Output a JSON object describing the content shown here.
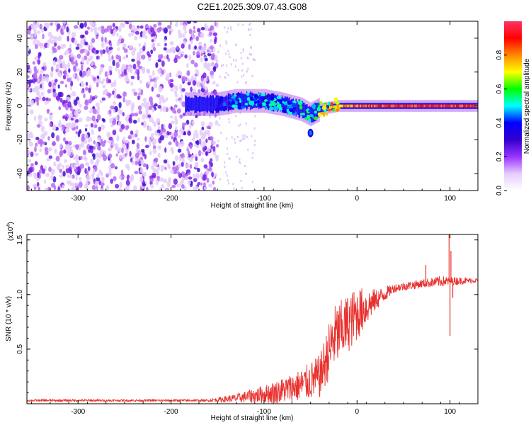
{
  "title": "C2E1.2025.309.07.43.G08",
  "chart_data": [
    {
      "type": "heatmap",
      "name": "spectrogram",
      "xlabel": "Height of straight line (km)",
      "ylabel": "Frequency (Hz)",
      "xlim": [
        -355,
        130
      ],
      "ylim": [
        -50,
        50
      ],
      "xticks": [
        -300,
        -200,
        -100,
        0,
        100
      ],
      "yticks": [
        -40,
        -20,
        0,
        20,
        40
      ],
      "colorbar": {
        "label": "Normalized spectral amplitude",
        "range": [
          0,
          1
        ],
        "ticks": [
          "0.0",
          "0.2",
          "0.4",
          "0.6",
          "0.8"
        ],
        "tick_values": [
          0,
          0.2,
          0.4,
          0.6,
          0.8
        ],
        "colormap": [
          "#ffffff",
          "#e6ccff",
          "#9933ff",
          "#3300cc",
          "#0000ff",
          "#00ffff",
          "#00ff00",
          "#ffff00",
          "#ff8800",
          "#ff0000",
          "#ff3366"
        ]
      },
      "noise_region_x": [
        -355,
        -150
      ],
      "signal_ridge": [
        {
          "x": -185,
          "f": 1,
          "a": 0.45
        },
        {
          "x": -150,
          "f": 1,
          "a": 0.35
        },
        {
          "x": -130,
          "f": 3,
          "a": 0.5
        },
        {
          "x": -100,
          "f": 3,
          "a": 0.5
        },
        {
          "x": -80,
          "f": 1,
          "a": 0.5
        },
        {
          "x": -60,
          "f": -2,
          "a": 0.55
        },
        {
          "x": -50,
          "f": -5,
          "a": 0.6
        },
        {
          "x": -40,
          "f": -2,
          "a": 0.7
        },
        {
          "x": -20,
          "f": 0,
          "a": 0.85
        },
        {
          "x": 0,
          "f": 0,
          "a": 0.9
        },
        {
          "x": 50,
          "f": 0,
          "a": 0.95
        },
        {
          "x": 100,
          "f": 0,
          "a": 0.95
        },
        {
          "x": 130,
          "f": 0,
          "a": 0.95
        }
      ],
      "blob": {
        "x": -50,
        "f": -16,
        "a": 0.45
      }
    },
    {
      "type": "line",
      "name": "snr",
      "xlabel": "Height of straight line (km)",
      "ylabel": "SNR (10 * v/v)",
      "y_multiplier_label": "(x10",
      "y_multiplier_exponent": "4",
      "y_multiplier_close": ")",
      "xlim": [
        -355,
        130
      ],
      "ylim": [
        0,
        1.55
      ],
      "xticks": [
        -300,
        -200,
        -100,
        0,
        100
      ],
      "yticks": [
        0.5,
        1.0,
        1.5
      ],
      "ytick_labels": [
        "0.5",
        "1.0",
        "1.5"
      ],
      "color": "#e8302d",
      "envelope": [
        {
          "x": -355,
          "mean": 0.03,
          "spread": 0.01
        },
        {
          "x": -160,
          "mean": 0.03,
          "spread": 0.01
        },
        {
          "x": -130,
          "mean": 0.05,
          "spread": 0.04
        },
        {
          "x": -90,
          "mean": 0.1,
          "spread": 0.1
        },
        {
          "x": -60,
          "mean": 0.17,
          "spread": 0.15
        },
        {
          "x": -40,
          "mean": 0.25,
          "spread": 0.2
        },
        {
          "x": -25,
          "mean": 0.6,
          "spread": 0.3
        },
        {
          "x": 0,
          "mean": 0.82,
          "spread": 0.25
        },
        {
          "x": 20,
          "mean": 0.95,
          "spread": 0.1
        },
        {
          "x": 40,
          "mean": 1.06,
          "spread": 0.04
        },
        {
          "x": 70,
          "mean": 1.1,
          "spread": 0.04
        },
        {
          "x": 90,
          "mean": 1.12,
          "spread": 0.05
        },
        {
          "x": 130,
          "mean": 1.13,
          "spread": 0.02
        }
      ],
      "spikes": [
        {
          "x": 74,
          "y": 1.27
        },
        {
          "x": 99,
          "y": 1.55
        },
        {
          "x": 100,
          "y": 0.62
        },
        {
          "x": 101,
          "y": 1.4
        },
        {
          "x": 103,
          "y": 0.97
        }
      ]
    }
  ]
}
